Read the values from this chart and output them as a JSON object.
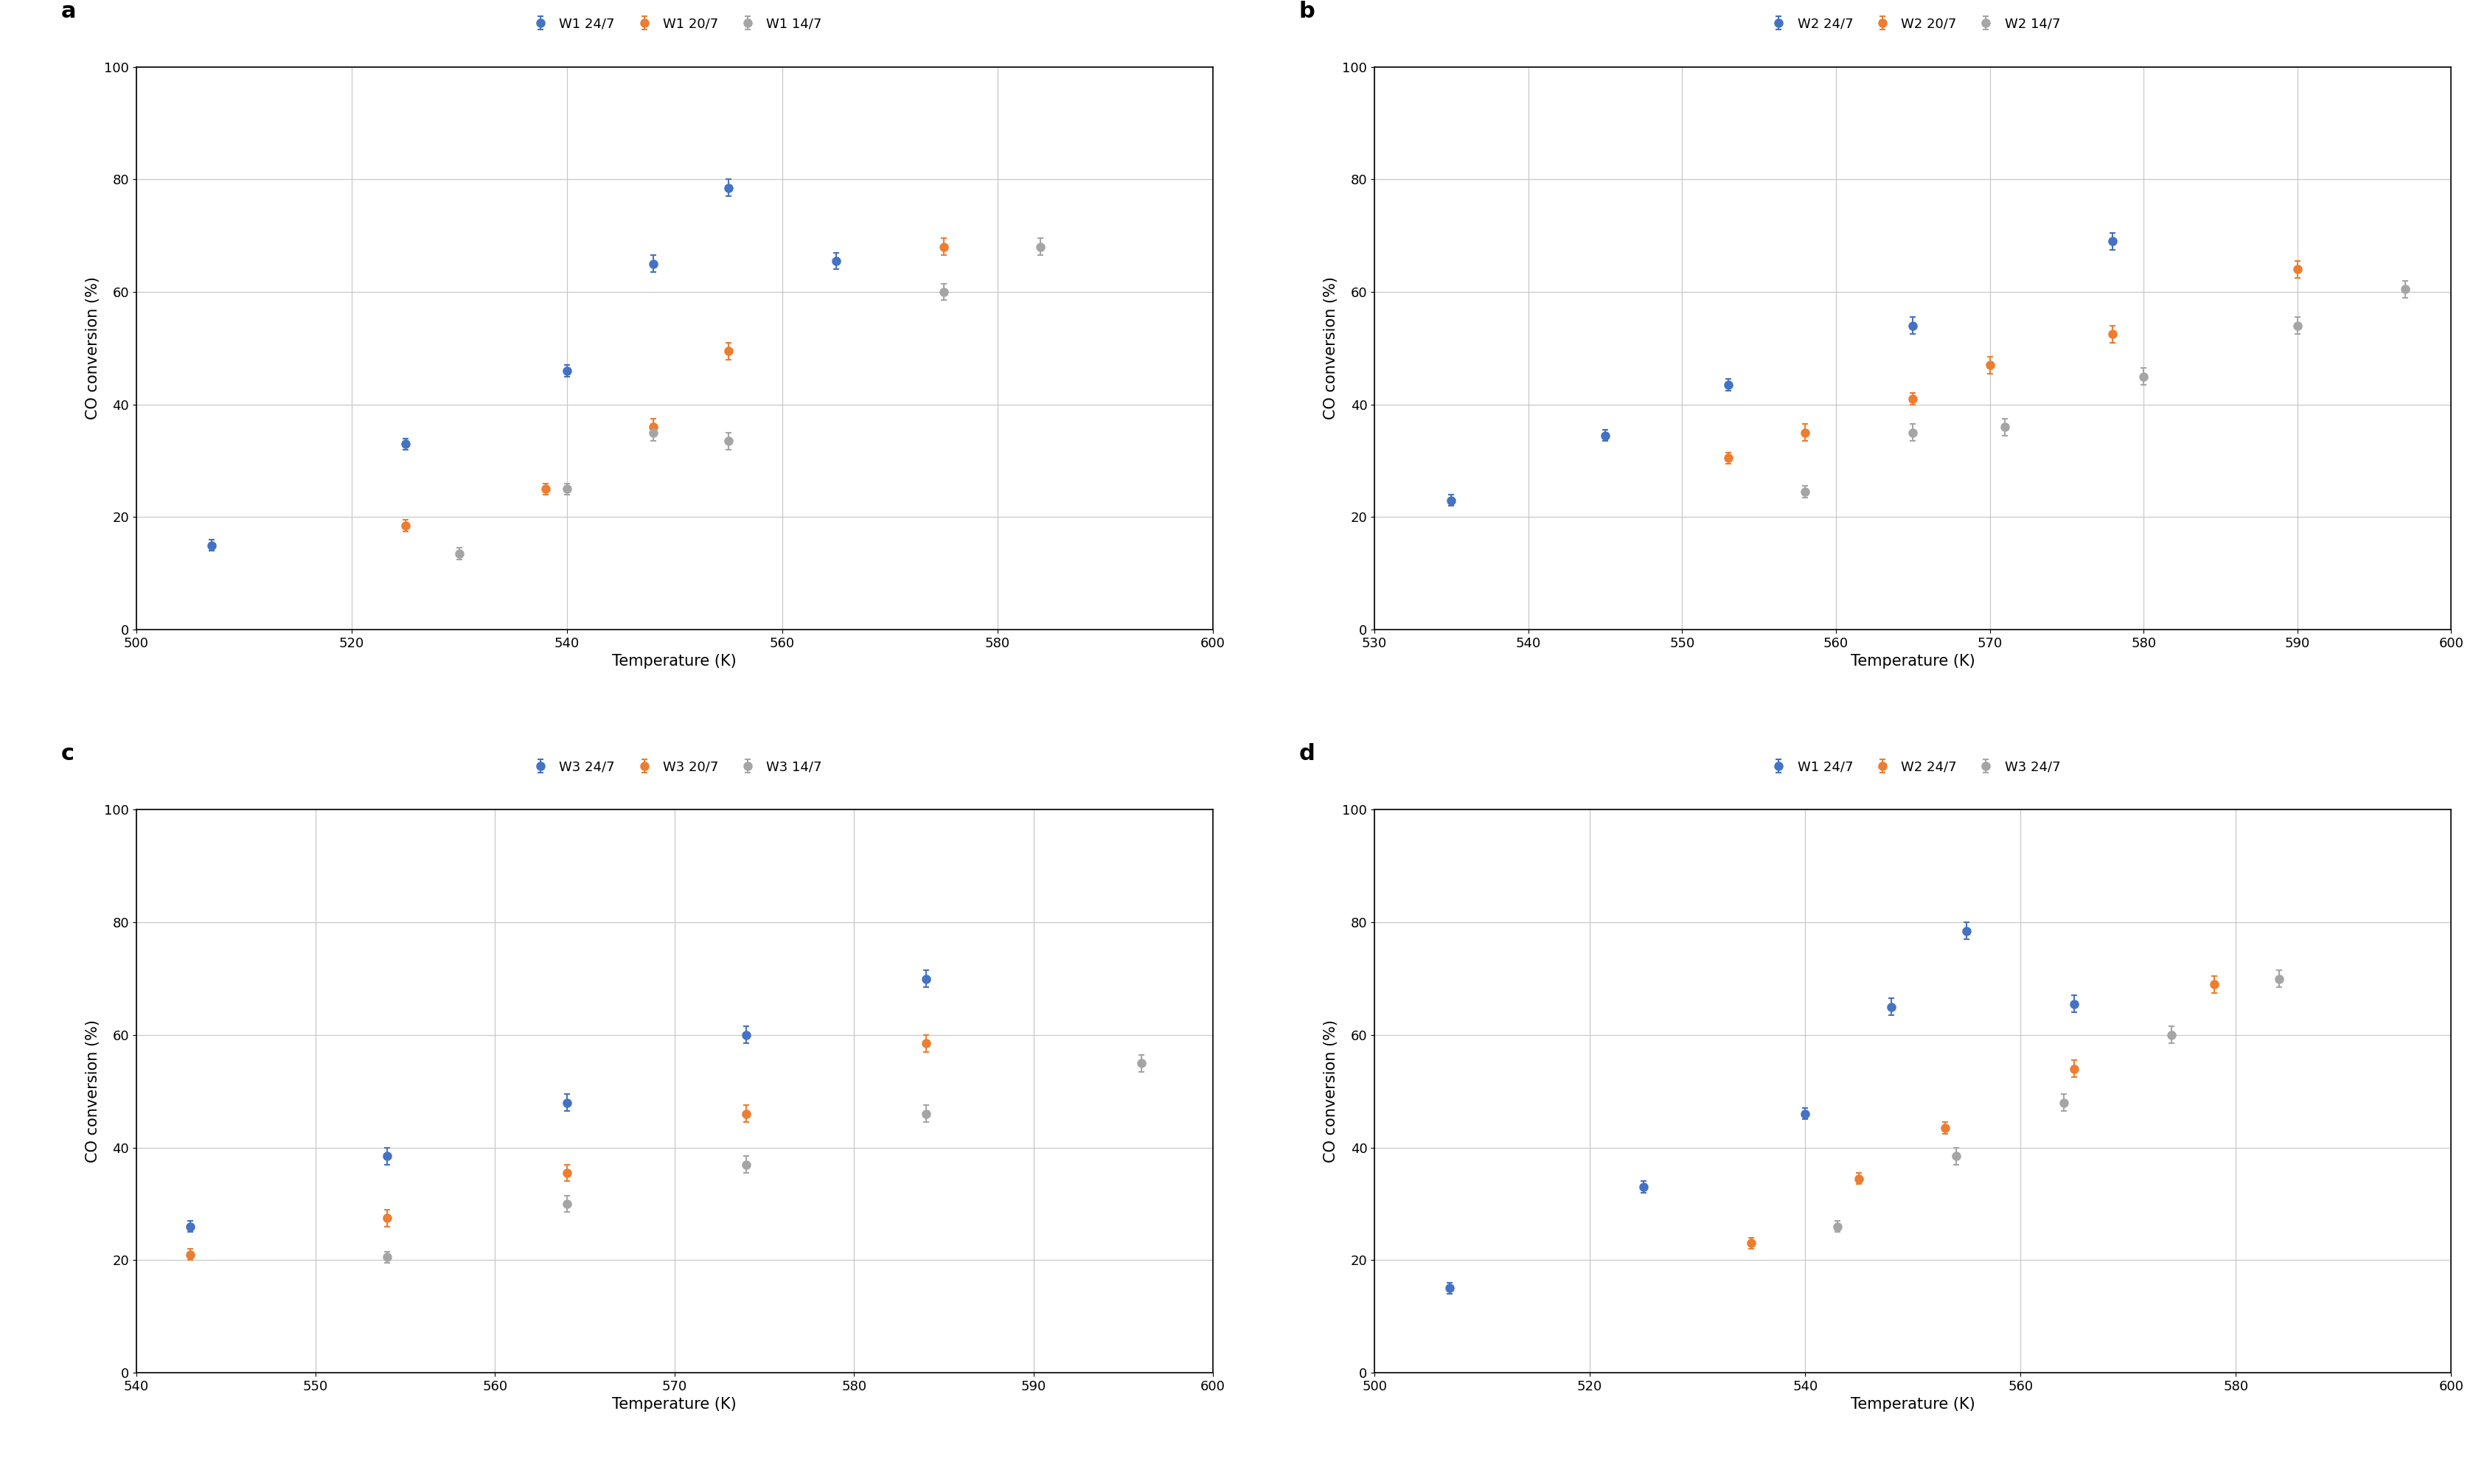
{
  "panels": [
    {
      "label": "a",
      "legend_labels": [
        "W1 24/7",
        "W1 20/7",
        "W1 14/7"
      ],
      "xlim": [
        500,
        600
      ],
      "xticks": [
        500,
        520,
        540,
        560,
        580,
        600
      ],
      "series": [
        {
          "color": "#4472C4",
          "x": [
            507,
            525,
            540,
            548,
            555,
            565
          ],
          "y": [
            15.0,
            33.0,
            46.0,
            65.0,
            78.5,
            65.5
          ],
          "yerr": [
            1.0,
            1.0,
            1.0,
            1.5,
            1.5,
            1.5
          ]
        },
        {
          "color": "#ED7D31",
          "x": [
            525,
            538,
            548,
            555,
            575
          ],
          "y": [
            18.5,
            25.0,
            36.0,
            49.5,
            68.0
          ],
          "yerr": [
            1.0,
            1.0,
            1.5,
            1.5,
            1.5
          ]
        },
        {
          "color": "#A5A5A5",
          "x": [
            530,
            540,
            548,
            555,
            575,
            584
          ],
          "y": [
            13.5,
            25.0,
            35.0,
            33.5,
            60.0,
            68.0
          ],
          "yerr": [
            1.0,
            1.0,
            1.5,
            1.5,
            1.5,
            1.5
          ]
        }
      ]
    },
    {
      "label": "b",
      "legend_labels": [
        "W2 24/7",
        "W2 20/7",
        "W2 14/7"
      ],
      "xlim": [
        530,
        600
      ],
      "xticks": [
        530,
        540,
        550,
        560,
        570,
        580,
        590,
        600
      ],
      "series": [
        {
          "color": "#4472C4",
          "x": [
            535,
            545,
            553,
            565,
            578
          ],
          "y": [
            23.0,
            34.5,
            43.5,
            54.0,
            69.0
          ],
          "yerr": [
            1.0,
            1.0,
            1.0,
            1.5,
            1.5
          ]
        },
        {
          "color": "#ED7D31",
          "x": [
            553,
            558,
            565,
            570,
            578,
            590
          ],
          "y": [
            30.5,
            35.0,
            41.0,
            47.0,
            52.5,
            64.0
          ],
          "yerr": [
            1.0,
            1.5,
            1.0,
            1.5,
            1.5,
            1.5
          ]
        },
        {
          "color": "#A5A5A5",
          "x": [
            558,
            565,
            571,
            580,
            590,
            597
          ],
          "y": [
            24.5,
            35.0,
            36.0,
            45.0,
            54.0,
            60.5
          ],
          "yerr": [
            1.0,
            1.5,
            1.5,
            1.5,
            1.5,
            1.5
          ]
        }
      ]
    },
    {
      "label": "c",
      "legend_labels": [
        "W3 24/7",
        "W3 20/7",
        "W3 14/7"
      ],
      "xlim": [
        540,
        600
      ],
      "xticks": [
        540,
        550,
        560,
        570,
        580,
        590,
        600
      ],
      "series": [
        {
          "color": "#4472C4",
          "x": [
            543,
            554,
            564,
            574,
            584
          ],
          "y": [
            26.0,
            38.5,
            48.0,
            60.0,
            70.0
          ],
          "yerr": [
            1.0,
            1.5,
            1.5,
            1.5,
            1.5
          ]
        },
        {
          "color": "#ED7D31",
          "x": [
            543,
            554,
            564,
            574,
            584
          ],
          "y": [
            21.0,
            27.5,
            35.5,
            46.0,
            58.5
          ],
          "yerr": [
            1.0,
            1.5,
            1.5,
            1.5,
            1.5
          ]
        },
        {
          "color": "#A5A5A5",
          "x": [
            554,
            564,
            574,
            584,
            596
          ],
          "y": [
            20.5,
            30.0,
            37.0,
            46.0,
            55.0
          ],
          "yerr": [
            1.0,
            1.5,
            1.5,
            1.5,
            1.5
          ]
        }
      ]
    },
    {
      "label": "d",
      "legend_labels": [
        "W1 24/7",
        "W2 24/7",
        "W3 24/7"
      ],
      "xlim": [
        500,
        600
      ],
      "xticks": [
        500,
        520,
        540,
        560,
        580,
        600
      ],
      "series": [
        {
          "color": "#4472C4",
          "x": [
            507,
            525,
            540,
            548,
            555,
            565
          ],
          "y": [
            15.0,
            33.0,
            46.0,
            65.0,
            78.5,
            65.5
          ],
          "yerr": [
            1.0,
            1.0,
            1.0,
            1.5,
            1.5,
            1.5
          ]
        },
        {
          "color": "#ED7D31",
          "x": [
            535,
            545,
            553,
            565,
            578
          ],
          "y": [
            23.0,
            34.5,
            43.5,
            54.0,
            69.0
          ],
          "yerr": [
            1.0,
            1.0,
            1.0,
            1.5,
            1.5
          ]
        },
        {
          "color": "#A5A5A5",
          "x": [
            543,
            554,
            564,
            574,
            584
          ],
          "y": [
            26.0,
            38.5,
            48.0,
            60.0,
            70.0
          ],
          "yerr": [
            1.0,
            1.5,
            1.5,
            1.5,
            1.5
          ]
        }
      ]
    }
  ],
  "ylim": [
    0,
    100
  ],
  "yticks": [
    0,
    20,
    40,
    60,
    80,
    100
  ],
  "ylabel": "CO conversion (%)",
  "xlabel": "Temperature (K)",
  "background_color": "#FFFFFF",
  "grid_color": "#C8C8C8",
  "marker_size": 8,
  "capsize": 3,
  "elinewidth": 1.5,
  "label_fontsize": 15,
  "tick_fontsize": 13,
  "legend_fontsize": 13,
  "panel_label_fontsize": 22
}
